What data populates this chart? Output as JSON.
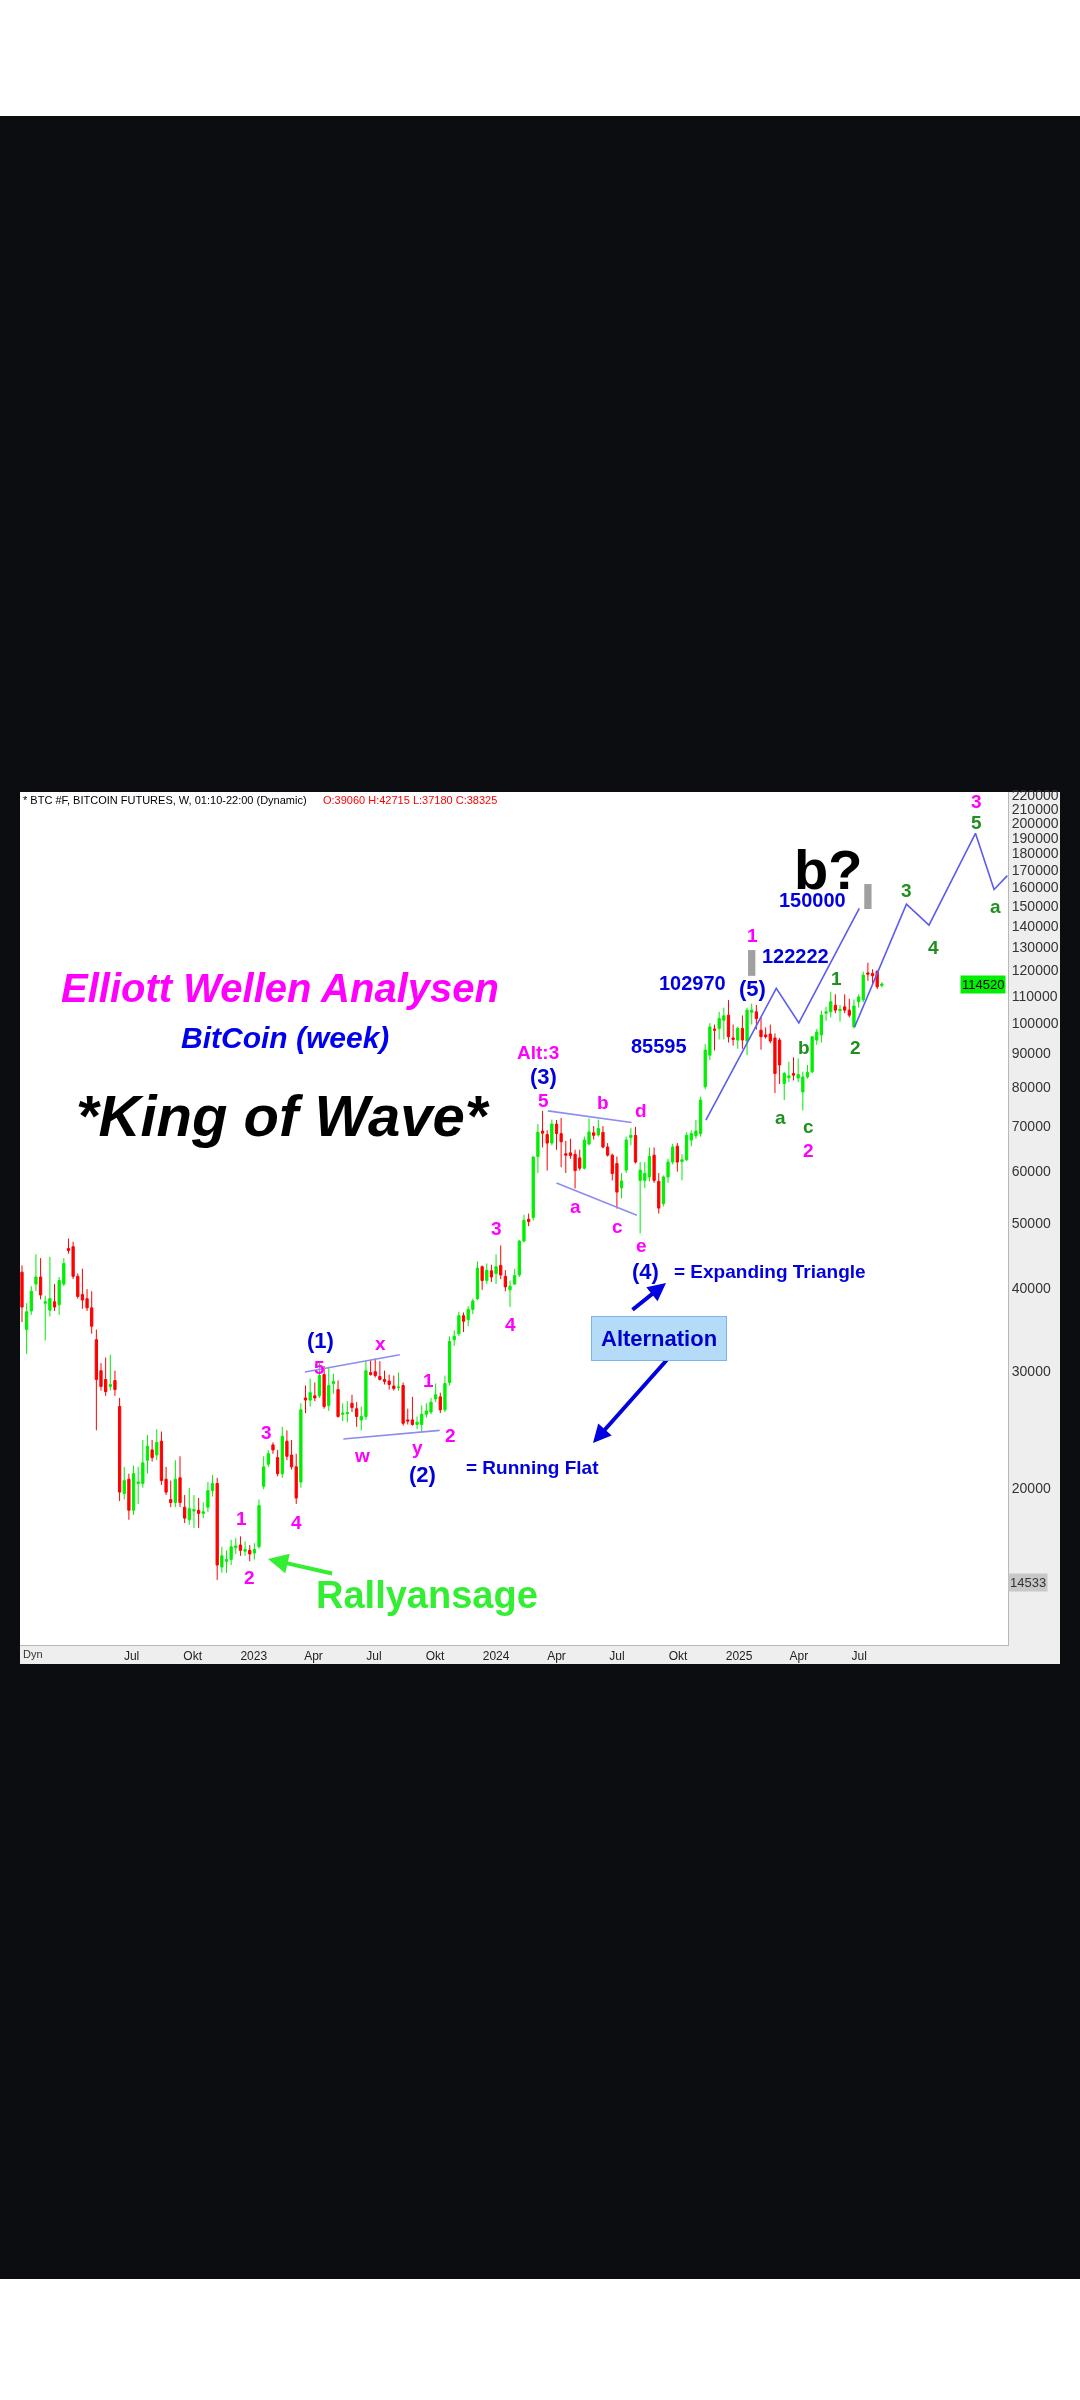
{
  "chart_data": {
    "type": "candlestick",
    "title": "Elliott Wellen Analysen",
    "subtitle": "BitCoin (week)",
    "annotations": [
      "* BTC #F, BITCOIN FUTURES, W, 01:10-22:00 (Dynamic)",
      "O:39060 H:42715 L:37180 C:38325",
      "*King of Wave*",
      "Dyn",
      "b?",
      "150000",
      "122222",
      "102970",
      "85595",
      "= Expanding Triangle",
      "= Running Flat",
      "Alternation",
      "Rallyansage",
      "114520",
      "14533",
      "1",
      "2",
      "3",
      "4",
      "5",
      "w",
      "x",
      "y",
      "1",
      "2",
      "3",
      "4",
      "Alt:3",
      "5",
      "a",
      "b",
      "c",
      "d",
      "e",
      "1",
      "2",
      "3",
      "(1)",
      "(2)",
      "(3)",
      "(4)",
      "(5)",
      "a",
      "b",
      "c",
      "1",
      "2",
      "3",
      "4",
      "5",
      "a"
    ],
    "x": [
      "2022-01-17",
      "2022-01-24",
      "2022-01-31",
      "2022-02-07",
      "2022-02-14",
      "2022-02-21",
      "2022-02-28",
      "2022-03-07",
      "2022-03-14",
      "2022-03-21",
      "2022-03-28",
      "2022-04-04",
      "2022-04-11",
      "2022-04-18",
      "2022-04-25",
      "2022-05-02",
      "2022-05-09",
      "2022-05-16",
      "2022-05-23",
      "2022-05-30",
      "2022-06-06",
      "2022-06-13",
      "2022-06-20",
      "2022-06-27",
      "2022-07-04",
      "2022-07-11",
      "2022-07-18",
      "2022-07-25",
      "2022-08-01",
      "2022-08-08",
      "2022-08-15",
      "2022-08-22",
      "2022-08-29",
      "2022-09-05",
      "2022-09-12",
      "2022-09-19",
      "2022-09-26",
      "2022-10-03",
      "2022-10-10",
      "2022-10-17",
      "2022-10-24",
      "2022-10-31",
      "2022-11-07",
      "2022-11-14",
      "2022-11-21",
      "2022-11-28",
      "2022-12-05",
      "2022-12-12",
      "2022-12-19",
      "2022-12-26",
      "2023-01-02",
      "2023-01-09",
      "2023-01-16",
      "2023-01-23",
      "2023-01-30",
      "2023-02-06",
      "2023-02-13",
      "2023-02-20",
      "2023-02-27",
      "2023-03-06",
      "2023-03-13",
      "2023-03-20",
      "2023-03-27",
      "2023-04-03",
      "2023-04-10",
      "2023-04-17",
      "2023-04-24",
      "2023-05-01",
      "2023-05-08",
      "2023-05-15",
      "2023-05-22",
      "2023-05-29",
      "2023-06-05",
      "2023-06-12",
      "2023-06-19",
      "2023-06-26",
      "2023-07-03",
      "2023-07-10",
      "2023-07-17",
      "2023-07-24",
      "2023-07-31",
      "2023-08-07",
      "2023-08-14",
      "2023-08-21",
      "2023-08-28",
      "2023-09-04",
      "2023-09-11",
      "2023-09-18",
      "2023-09-25",
      "2023-10-02",
      "2023-10-09",
      "2023-10-16",
      "2023-10-23",
      "2023-10-30",
      "2023-11-06",
      "2023-11-13",
      "2023-11-20",
      "2023-11-27",
      "2023-12-04",
      "2023-12-11",
      "2023-12-18",
      "2023-12-25",
      "2024-01-01",
      "2024-01-08",
      "2024-01-15",
      "2024-01-22",
      "2024-01-29",
      "2024-02-05",
      "2024-02-12",
      "2024-02-19",
      "2024-02-26",
      "2024-03-04",
      "2024-03-11",
      "2024-03-18",
      "2024-03-25",
      "2024-04-01",
      "2024-04-08",
      "2024-04-15",
      "2024-04-22",
      "2024-04-29",
      "2024-05-06",
      "2024-05-13",
      "2024-05-20",
      "2024-05-27",
      "2024-06-03",
      "2024-06-10",
      "2024-06-17",
      "2024-06-24",
      "2024-07-01",
      "2024-07-08",
      "2024-07-15",
      "2024-07-22",
      "2024-07-29",
      "2024-08-05",
      "2024-08-12",
      "2024-08-19",
      "2024-08-26",
      "2024-09-02",
      "2024-09-09",
      "2024-09-16",
      "2024-09-23",
      "2024-09-30",
      "2024-10-07",
      "2024-10-14",
      "2024-10-21",
      "2024-10-28",
      "2024-11-04",
      "2024-11-11",
      "2024-11-18",
      "2024-11-25",
      "2024-12-02",
      "2024-12-09",
      "2024-12-16",
      "2024-12-23",
      "2024-12-30",
      "2025-01-06",
      "2025-01-13",
      "2025-01-20",
      "2025-01-27",
      "2025-02-03",
      "2025-02-10",
      "2025-02-17",
      "2025-02-24",
      "2025-03-03",
      "2025-03-10",
      "2025-03-17",
      "2025-03-24",
      "2025-03-31",
      "2025-04-07",
      "2025-04-14",
      "2025-04-21",
      "2025-04-28",
      "2025-05-05",
      "2025-05-12",
      "2025-05-19",
      "2025-05-26",
      "2025-06-02",
      "2025-06-09",
      "2025-06-16",
      "2025-06-23",
      "2025-06-30",
      "2025-07-07",
      "2025-07-14",
      "2025-07-21",
      "2025-07-28",
      "2025-08-04"
    ],
    "ohlc": [
      [
        42200,
        43200,
        35500,
        37400
      ],
      [
        34600,
        37900,
        31800,
        36800
      ],
      [
        36900,
        40200,
        36400,
        39500
      ],
      [
        40500,
        44900,
        39500,
        41500
      ],
      [
        41500,
        44300,
        38400,
        39000
      ],
      [
        37900,
        38900,
        33300,
        38100
      ],
      [
        37000,
        44500,
        36200,
        38500
      ],
      [
        38100,
        40500,
        36900,
        37400
      ],
      [
        37700,
        41500,
        36400,
        41000
      ],
      [
        40500,
        44300,
        40200,
        43500
      ],
      [
        45800,
        47400,
        45000,
        45500
      ],
      [
        46100,
        46900,
        41200,
        41600
      ],
      [
        41600,
        42000,
        38500,
        38800
      ],
      [
        39060,
        42715,
        37180,
        38325
      ],
      [
        38500,
        39800,
        36900,
        37300
      ],
      [
        37300,
        39500,
        34100,
        35000
      ],
      [
        33400,
        34600,
        24400,
        29100
      ],
      [
        30000,
        30800,
        28000,
        28400
      ],
      [
        29100,
        31400,
        27500,
        27900
      ],
      [
        28400,
        31700,
        28000,
        28600
      ],
      [
        29000,
        30000,
        27500,
        28100
      ],
      [
        26500,
        27300,
        19100,
        19700
      ],
      [
        19600,
        21500,
        19200,
        20500
      ],
      [
        20600,
        21000,
        17900,
        18500
      ],
      [
        18500,
        21600,
        18200,
        21000
      ],
      [
        20300,
        21500,
        18900,
        20400
      ],
      [
        20300,
        23600,
        20000,
        21800
      ],
      [
        22000,
        24000,
        21000,
        23100
      ],
      [
        22800,
        23600,
        21900,
        22200
      ],
      [
        22400,
        24500,
        22000,
        23400
      ],
      [
        23500,
        24300,
        20200,
        20500
      ],
      [
        20600,
        21500,
        19500,
        19700
      ],
      [
        19200,
        20500,
        18700,
        19000
      ],
      [
        19000,
        22000,
        18700,
        20600
      ],
      [
        20700,
        22300,
        18700,
        19000
      ],
      [
        18700,
        19500,
        17700,
        18000
      ],
      [
        17900,
        20000,
        17600,
        18600
      ],
      [
        18450,
        19500,
        17400,
        18550
      ],
      [
        18500,
        19300,
        17400,
        18300
      ],
      [
        18300,
        19000,
        18000,
        18400
      ],
      [
        18700,
        20400,
        18400,
        19800
      ],
      [
        19800,
        20900,
        19400,
        20300
      ],
      [
        20300,
        20700,
        14533,
        15300
      ],
      [
        15200,
        16300,
        14900,
        15800
      ],
      [
        15500,
        16100,
        14900,
        15600
      ],
      [
        15600,
        16700,
        15300,
        16300
      ],
      [
        16250,
        16800,
        15900,
        16350
      ],
      [
        16400,
        16900,
        15800,
        16100
      ],
      [
        16050,
        16600,
        15800,
        16150
      ],
      [
        16100,
        16400,
        15500,
        15900
      ],
      [
        15950,
        16500,
        15600,
        16150
      ],
      [
        16300,
        19200,
        16200,
        18800
      ],
      [
        20100,
        22300,
        19900,
        21500
      ],
      [
        21700,
        22770,
        21500,
        22500
      ],
      [
        23200,
        23400,
        22500,
        22800
      ],
      [
        22200,
        22800,
        20800,
        21000
      ],
      [
        21000,
        24700,
        20700,
        23900
      ],
      [
        23500,
        24400,
        22000,
        22300
      ],
      [
        22400,
        23600,
        21300,
        21500
      ],
      [
        21500,
        22500,
        18900,
        19300
      ],
      [
        20400,
        26800,
        20000,
        26200
      ],
      [
        27300,
        28500,
        25900,
        27100
      ],
      [
        27100,
        29200,
        26500,
        27800
      ],
      [
        27500,
        28800,
        27000,
        27300
      ],
      [
        27500,
        30800,
        27300,
        29500
      ],
      [
        29600,
        30500,
        26300,
        26500
      ],
      [
        26600,
        30400,
        26100,
        28500
      ],
      [
        28700,
        29700,
        27700,
        28900
      ],
      [
        28100,
        29000,
        25500,
        25600
      ],
      [
        25800,
        26800,
        25200,
        25900
      ],
      [
        25850,
        27000,
        25100,
        25950
      ],
      [
        26800,
        27600,
        26000,
        26400
      ],
      [
        26300,
        26900,
        24700,
        25600
      ],
      [
        25300,
        26500,
        24400,
        25600
      ],
      [
        25600,
        31000,
        25300,
        30000
      ],
      [
        29800,
        31100,
        29500,
        29600
      ],
      [
        29900,
        31300,
        29300,
        29500
      ],
      [
        29400,
        31000,
        29000,
        29100
      ],
      [
        29100,
        30000,
        28600,
        28900
      ],
      [
        28950,
        29600,
        28100,
        28600
      ],
      [
        28450,
        29500,
        28000,
        28200
      ],
      [
        28300,
        29800,
        28000,
        28360
      ],
      [
        28500,
        28800,
        24800,
        25000
      ],
      [
        25300,
        26300,
        24900,
        25200
      ],
      [
        25300,
        27400,
        24800,
        24900
      ],
      [
        24900,
        25600,
        24500,
        25100
      ],
      [
        24900,
        26600,
        24300,
        25800
      ],
      [
        25800,
        26800,
        25500,
        26100
      ],
      [
        26000,
        27300,
        25800,
        26900
      ],
      [
        27200,
        28700,
        26900,
        27600
      ],
      [
        27400,
        27800,
        25900,
        26200
      ],
      [
        26200,
        29500,
        26000,
        28700
      ],
      [
        28800,
        33800,
        28500,
        33200
      ],
      [
        33400,
        34500,
        32700,
        33800
      ],
      [
        34100,
        36800,
        33800,
        36300
      ],
      [
        36300,
        36700,
        34300,
        35600
      ],
      [
        35800,
        37500,
        35000,
        37100
      ],
      [
        37100,
        38500,
        36500,
        38200
      ],
      [
        38500,
        43800,
        38300,
        42800
      ],
      [
        43000,
        43200,
        39700,
        41000
      ],
      [
        41000,
        43500,
        40500,
        42500
      ],
      [
        42400,
        43300,
        40800,
        41500
      ],
      [
        42000,
        44900,
        40500,
        43000
      ],
      [
        43200,
        46300,
        41200,
        41800
      ],
      [
        41600,
        42500,
        39500,
        40100
      ],
      [
        39700,
        41000,
        37400,
        40200
      ],
      [
        40500,
        42700,
        40400,
        41700
      ],
      [
        41800,
        47200,
        41500,
        47000
      ],
      [
        47000,
        51500,
        46800,
        50500
      ],
      [
        50700,
        51700,
        49500,
        50300
      ],
      [
        51000,
        63000,
        50500,
        62900
      ],
      [
        63000,
        70500,
        59500,
        68500
      ],
      [
        68800,
        73800,
        65000,
        68300
      ],
      [
        68000,
        69000,
        60000,
        66000
      ],
      [
        66000,
        71600,
        65500,
        70500
      ],
      [
        70500,
        71500,
        64500,
        68200
      ],
      [
        68200,
        72000,
        60700,
        66300
      ],
      [
        63600,
        66500,
        59500,
        63300
      ],
      [
        63800,
        67000,
        62500,
        63200
      ],
      [
        63500,
        64500,
        56400,
        60000
      ],
      [
        62700,
        64500,
        60000,
        60500
      ],
      [
        60500,
        67500,
        60200,
        66700
      ],
      [
        65800,
        71900,
        65500,
        68600
      ],
      [
        68400,
        70000,
        66800,
        67800
      ],
      [
        67900,
        71600,
        67500,
        69400
      ],
      [
        68500,
        70000,
        64800,
        65100
      ],
      [
        65100,
        66000,
        63000,
        63300
      ],
      [
        63300,
        63600,
        58000,
        59400
      ],
      [
        61500,
        63000,
        52600,
        55700
      ],
      [
        56500,
        59500,
        54500,
        57900
      ],
      [
        60100,
        67500,
        59500,
        66700
      ],
      [
        67300,
        69500,
        65500,
        67800
      ],
      [
        67800,
        69800,
        61500,
        61800
      ],
      [
        58000,
        61800,
        48250,
        60100
      ],
      [
        58000,
        61800,
        56500,
        59400
      ],
      [
        58700,
        65000,
        57800,
        63000
      ],
      [
        63300,
        65000,
        57500,
        58000
      ],
      [
        57800,
        59500,
        51700,
        52700
      ],
      [
        53500,
        59000,
        53000,
        58700
      ],
      [
        58700,
        62500,
        57500,
        61800
      ],
      [
        61800,
        65800,
        61300,
        65100
      ],
      [
        65300,
        66000,
        59800,
        61800
      ],
      [
        61900,
        63500,
        58000,
        62300
      ],
      [
        62300,
        68500,
        62000,
        67800
      ],
      [
        66700,
        69000,
        65300,
        68200
      ],
      [
        67700,
        71500,
        67000,
        68800
      ],
      [
        68200,
        77500,
        67500,
        76600
      ],
      [
        80200,
        93000,
        79500,
        91100
      ],
      [
        89500,
        100000,
        88000,
        98700
      ],
      [
        98000,
        99500,
        91000,
        97600
      ],
      [
        98200,
        104000,
        94500,
        101600
      ],
      [
        101000,
        105500,
        94500,
        102600
      ],
      [
        102800,
        108300,
        93500,
        95400
      ],
      [
        95000,
        99500,
        92500,
        94500
      ],
      [
        94300,
        98800,
        91500,
        98200
      ],
      [
        98200,
        102700,
        91500,
        94300
      ],
      [
        94000,
        105500,
        89500,
        104600
      ],
      [
        103800,
        107000,
        99500,
        104600
      ],
      [
        104000,
        106500,
        97800,
        101600
      ],
      [
        97600,
        102000,
        91200,
        95400
      ],
      [
        96000,
        98500,
        94800,
        95400
      ],
      [
        96300,
        99500,
        93300,
        94000
      ],
      [
        95000,
        96500,
        78500,
        84000
      ],
      [
        94300,
        95000,
        81000,
        86500
      ],
      [
        81100,
        84500,
        76600,
        84000
      ],
      [
        82800,
        87500,
        81500,
        83300
      ],
      [
        84000,
        88800,
        82000,
        83500
      ],
      [
        82700,
        88500,
        81500,
        83700
      ],
      [
        78800,
        84500,
        73900,
        83000
      ],
      [
        83000,
        86500,
        82500,
        84300
      ],
      [
        84500,
        95500,
        84000,
        95400
      ],
      [
        94300,
        98000,
        92800,
        97000
      ],
      [
        96000,
        104500,
        93500,
        102800
      ],
      [
        103500,
        105800,
        100800,
        104000
      ],
      [
        104000,
        111500,
        102000,
        107700
      ],
      [
        106400,
        110500,
        103500,
        104600
      ],
      [
        104400,
        106500,
        100500,
        104900
      ],
      [
        105800,
        110500,
        103500,
        104600
      ],
      [
        104600,
        108800,
        102000,
        102800
      ],
      [
        98700,
        108500,
        98200,
        106100
      ],
      [
        107700,
        110500,
        105500,
        109500
      ],
      [
        108400,
        119500,
        107500,
        118100
      ],
      [
        119000,
        123300,
        115800,
        118500
      ],
      [
        118800,
        120500,
        114800,
        117800
      ],
      [
        119700,
        120000,
        112500,
        113400
      ],
      [
        113900,
        115200,
        113200,
        114520
      ]
    ],
    "series": [
      {
        "type": "bar",
        "color": "#a0a0a0",
        "x": [
          "2025-01-20",
          "2025-07-14"
        ],
        "base": [
          117800,
          148500
        ],
        "values": [
          11000,
          13400
        ]
      },
      {
        "type": "line",
        "color": "#8c8cf0",
        "x": [
          "2023-03-19",
          "2023-08-09"
        ],
        "values": [
          29860,
          31700
        ]
      },
      {
        "type": "line",
        "color": "#8c8cf0",
        "x": [
          "2023-05-16",
          "2023-10-08"
        ],
        "values": [
          23680,
          24400
        ]
      },
      {
        "type": "line",
        "color": "#8c8cf0",
        "x": [
          "2024-03-19",
          "2024-07-23"
        ],
        "values": [
          73800,
          70880
        ]
      },
      {
        "type": "line",
        "color": "#8c8cf0",
        "x": [
          "2024-04-01",
          "2024-07-31"
        ],
        "values": [
          57500,
          51410
        ]
      },
      {
        "type": "line",
        "color": "#5c5cf0",
        "x": [
          "2024-11-12",
          "2025-02-26",
          "2025-04-01",
          "2025-07-01"
        ],
        "values": [
          71450,
          112800,
          100100,
          148800
        ]
      },
      {
        "type": "line",
        "color": "#5c5cf0",
        "x": [
          "2025-06-24",
          "2025-09-10",
          "2025-10-14",
          "2025-12-23",
          "2026-01-20",
          "2026-02-09"
        ],
        "values": [
          98700,
          151000,
          140400,
          193000,
          158900,
          166700
        ]
      }
    ],
    "xlim": [
      "2022-01-14",
      "2026-02-10"
    ],
    "xticks": [
      {
        "value": "2022-07-01",
        "label": "Jul"
      },
      {
        "value": "2022-10-01",
        "label": "Okt"
      },
      {
        "value": "2023-01-01",
        "label": "2023"
      },
      {
        "value": "2023-04-01",
        "label": "Apr"
      },
      {
        "value": "2023-07-01",
        "label": "Jul"
      },
      {
        "value": "2023-10-01",
        "label": "Okt"
      },
      {
        "value": "2024-01-01",
        "label": "2024"
      },
      {
        "value": "2024-04-01",
        "label": "Apr"
      },
      {
        "value": "2024-07-01",
        "label": "Jul"
      },
      {
        "value": "2024-10-01",
        "label": "Okt"
      },
      {
        "value": "2025-01-01",
        "label": "2025"
      },
      {
        "value": "2025-04-01",
        "label": "Apr"
      },
      {
        "value": "2025-07-01",
        "label": "Jul"
      }
    ],
    "ylim": [
      11600,
      222700
    ],
    "yticks": [
      20000,
      30000,
      40000,
      50000,
      60000,
      70000,
      80000,
      90000,
      100000,
      110000,
      120000,
      130000,
      140000,
      150000,
      160000,
      170000,
      180000,
      190000,
      200000,
      210000,
      220000
    ],
    "log": "y",
    "grid": false
  }
}
